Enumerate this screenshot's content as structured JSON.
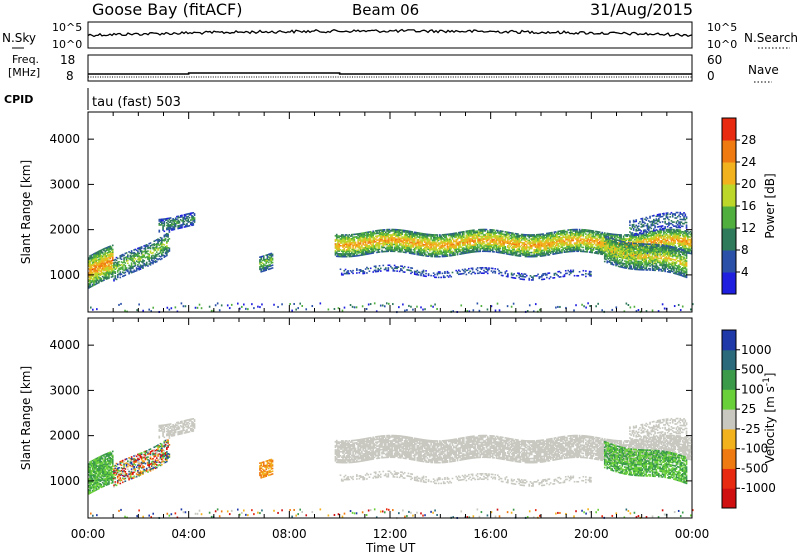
{
  "header": {
    "station": "Goose Bay (fitACF)",
    "beam": "Beam 06",
    "date": "31/Aug/2015"
  },
  "sky_panel": {
    "left_label": "N.Sky",
    "right_label": "N.Search",
    "left_top_tick": "10^5",
    "left_bottom_tick": "10^0",
    "right_top_tick": "10^5",
    "right_bottom_tick": "10^0"
  },
  "freq_panel": {
    "left_label_1": "Freq.",
    "left_label_2": "[MHz]",
    "right_label": "Nave",
    "left_top_tick": "18",
    "left_bottom_tick": "8",
    "right_top_tick": "60",
    "right_bottom_tick": "0"
  },
  "cpid_panel": {
    "label": "CPID",
    "value": "tau (fast) 503"
  },
  "chart_data": [
    {
      "type": "heatmap",
      "title": "",
      "xlabel": "Time UT",
      "ylabel": "Slant Range [km]",
      "x_ticks": [
        "00:00",
        "04:00",
        "08:00",
        "12:00",
        "16:00",
        "20:00",
        "00:00"
      ],
      "y_ticks": [
        1000,
        2000,
        3000,
        4000
      ],
      "xlim": [
        0,
        24
      ],
      "ylim": [
        180,
        4600
      ],
      "colorbar": {
        "label": "Power [dB]",
        "ticks": [
          "4",
          "8",
          "12",
          "16",
          "20",
          "24",
          "28"
        ],
        "colors": [
          "#1f1fe0",
          "#2a50a8",
          "#2f7a5a",
          "#4fae3e",
          "#bcd62a",
          "#f2b21e",
          "#f07a12",
          "#e82a10"
        ]
      },
      "echo_regions": [
        {
          "name": "near-range clutter",
          "t": [
            0,
            24
          ],
          "range": [
            200,
            350
          ]
        },
        {
          "name": "early band",
          "t": [
            0,
            3.8
          ],
          "range": [
            700,
            2400
          ]
        },
        {
          "name": "main band",
          "t": [
            9.8,
            24
          ],
          "range": [
            800,
            1900
          ]
        },
        {
          "name": "isolated patch",
          "t": [
            6.8,
            7.3
          ],
          "range": [
            1100,
            1500
          ]
        }
      ]
    },
    {
      "type": "heatmap",
      "title": "",
      "xlabel": "Time UT",
      "ylabel": "Slant Range [km]",
      "x_ticks": [
        "00:00",
        "04:00",
        "08:00",
        "12:00",
        "16:00",
        "20:00",
        "00:00"
      ],
      "y_ticks": [
        1000,
        2000,
        3000,
        4000
      ],
      "xlim": [
        0,
        24
      ],
      "ylim": [
        180,
        4600
      ],
      "colorbar": {
        "label": "Velocity [m s^-1]",
        "ticks": [
          "1000",
          "500",
          "100",
          "25",
          "-25",
          "-100",
          "-500",
          "-1000"
        ],
        "colors": [
          "#1f3aa8",
          "#2a6a7a",
          "#3a9a4a",
          "#6ad03a",
          "#c8c8c0",
          "#f2b21e",
          "#f07a12",
          "#e82a10",
          "#d01010"
        ]
      }
    }
  ],
  "colors": {
    "axis": "#000000",
    "ground_scatter": "#c8c8c0"
  }
}
